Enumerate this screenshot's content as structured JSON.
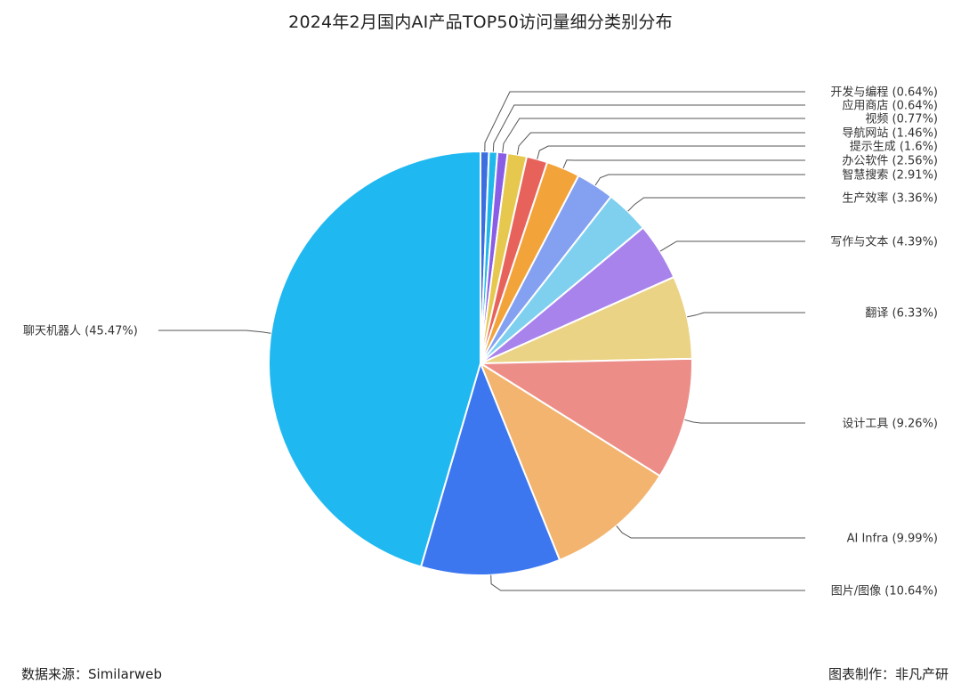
{
  "chart_data": {
    "type": "pie",
    "title": "2024年2月国内AI产品TOP50访问量细分类别分布",
    "slices": [
      {
        "label": "开发与编程 (0.64%)",
        "value": 0.64,
        "color": "#3b6fe0"
      },
      {
        "label": "应用商店 (0.64%)",
        "value": 0.64,
        "color": "#1fb8ec"
      },
      {
        "label": "视频 (0.77%)",
        "value": 0.77,
        "color": "#8a5de6"
      },
      {
        "label": "导航网站 (1.46%)",
        "value": 1.46,
        "color": "#e6c84f"
      },
      {
        "label": "提示生成 (1.6%)",
        "value": 1.6,
        "color": "#e8625c"
      },
      {
        "label": "办公软件 (2.56%)",
        "value": 2.56,
        "color": "#f2a33a"
      },
      {
        "label": "智慧搜索 (2.91%)",
        "value": 2.91,
        "color": "#83a1f0"
      },
      {
        "label": "生产效率 (3.36%)",
        "value": 3.36,
        "color": "#7fd0ef"
      },
      {
        "label": "写作与文本 (4.39%)",
        "value": 4.39,
        "color": "#a883ec"
      },
      {
        "label": "翻译 (6.33%)",
        "value": 6.33,
        "color": "#ebd385"
      },
      {
        "label": "设计工具 (9.26%)",
        "value": 9.26,
        "color": "#ec8d88"
      },
      {
        "label": "AI Infra (9.99%)",
        "value": 9.99,
        "color": "#f2b46e"
      },
      {
        "label": "图片/图像 (10.64%)",
        "value": 10.64,
        "color": "#3c77f0"
      },
      {
        "label": "聊天机器人 (45.47%)",
        "value": 45.47,
        "color": "#1fb8f0"
      }
    ]
  },
  "footer": {
    "source": "数据来源：Similarweb",
    "credit": "图表制作：非凡产研"
  }
}
